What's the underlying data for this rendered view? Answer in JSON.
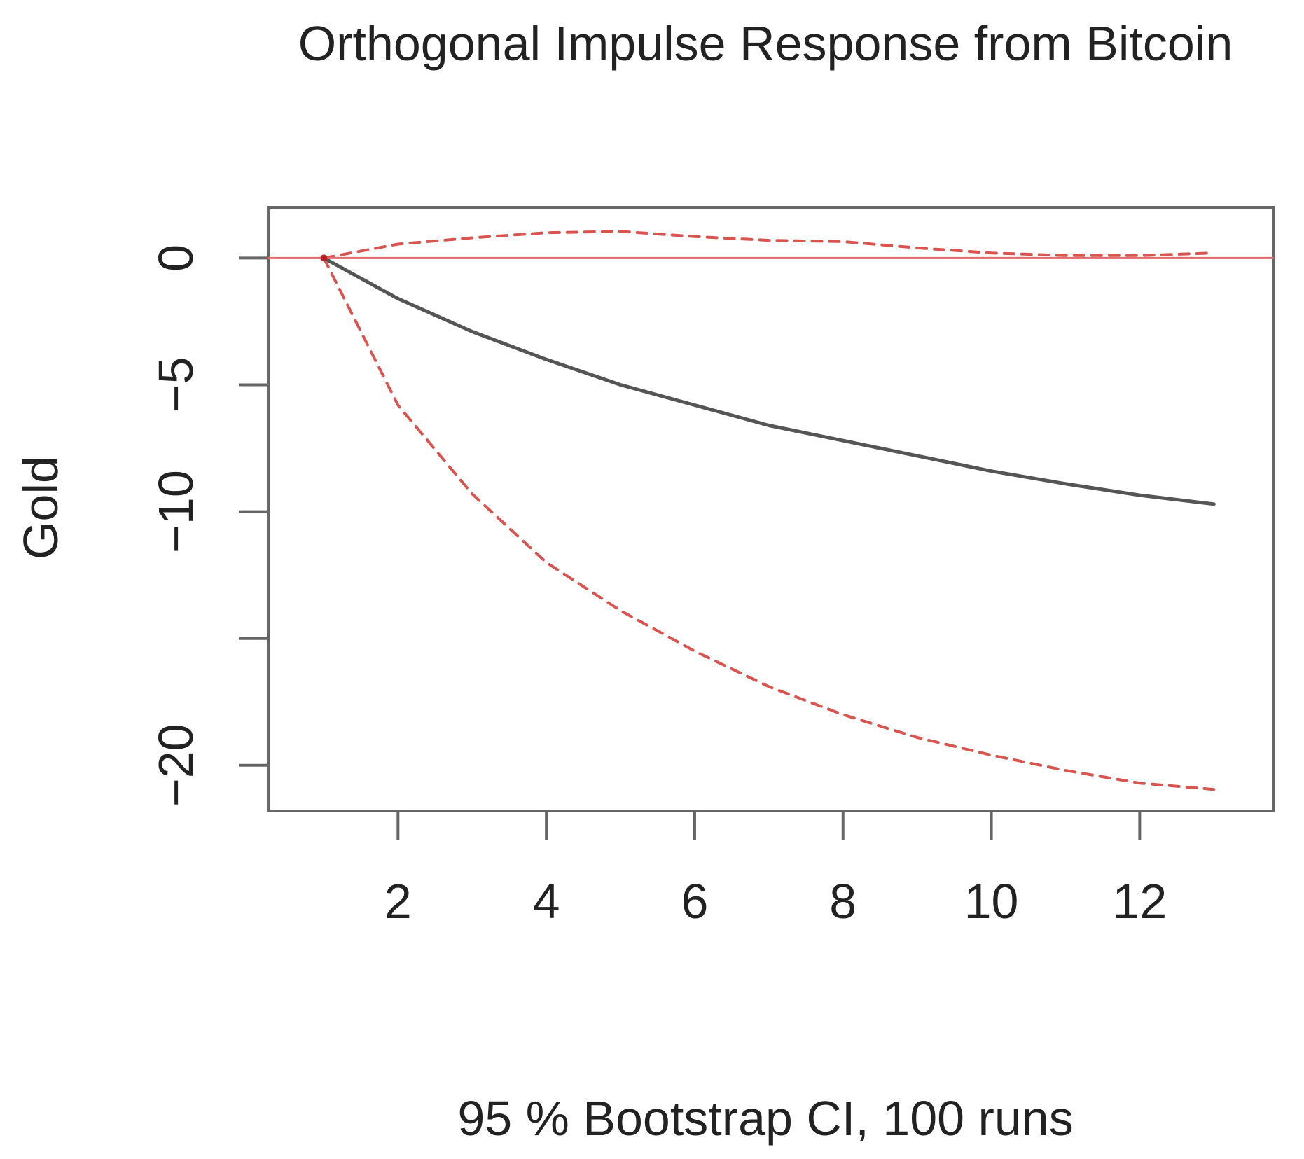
{
  "chart_data": {
    "type": "line",
    "title": "Orthogonal Impulse Response from Bitcoin",
    "xlabel": "95 % Bootstrap CI,  100 runs",
    "ylabel": "Gold",
    "xlim": [
      0.25,
      13.8
    ],
    "ylim": [
      -21.8,
      2.0
    ],
    "x_ticks": [
      2,
      4,
      6,
      8,
      10,
      12
    ],
    "x_tick_labels": [
      "2",
      "4",
      "6",
      "8",
      "10",
      "12"
    ],
    "y_ticks": [
      0,
      -5,
      -10,
      -15,
      -20
    ],
    "y_tick_labels": [
      "0",
      "-5",
      "-10",
      "",
      "-20"
    ],
    "grid": false,
    "x": [
      1,
      2,
      3,
      4,
      5,
      6,
      7,
      8,
      9,
      10,
      11,
      12,
      13
    ],
    "series": [
      {
        "key": "response",
        "values": [
          0.0,
          -1.6,
          -2.9,
          -4.0,
          -5.0,
          -5.8,
          -6.6,
          -7.2,
          -7.8,
          -8.4,
          -8.9,
          -9.35,
          -9.7
        ],
        "color": "#555555",
        "style": "solid"
      },
      {
        "key": "upper",
        "values": [
          0.0,
          0.55,
          0.8,
          1.0,
          1.05,
          0.85,
          0.7,
          0.65,
          0.4,
          0.2,
          0.1,
          0.1,
          0.2
        ],
        "color": "#d9534f",
        "style": "dashed"
      },
      {
        "key": "lower",
        "values": [
          0.0,
          -5.8,
          -9.3,
          -12.0,
          -13.9,
          -15.5,
          -16.9,
          -18.0,
          -18.9,
          -19.6,
          -20.2,
          -20.7,
          -20.95
        ],
        "color": "#d9534f",
        "style": "dashed"
      },
      {
        "key": "zero",
        "values": [
          0,
          0,
          0,
          0,
          0,
          0,
          0,
          0,
          0,
          0,
          0,
          0,
          0
        ],
        "color": "#e06b6b",
        "style": "solid"
      }
    ]
  }
}
